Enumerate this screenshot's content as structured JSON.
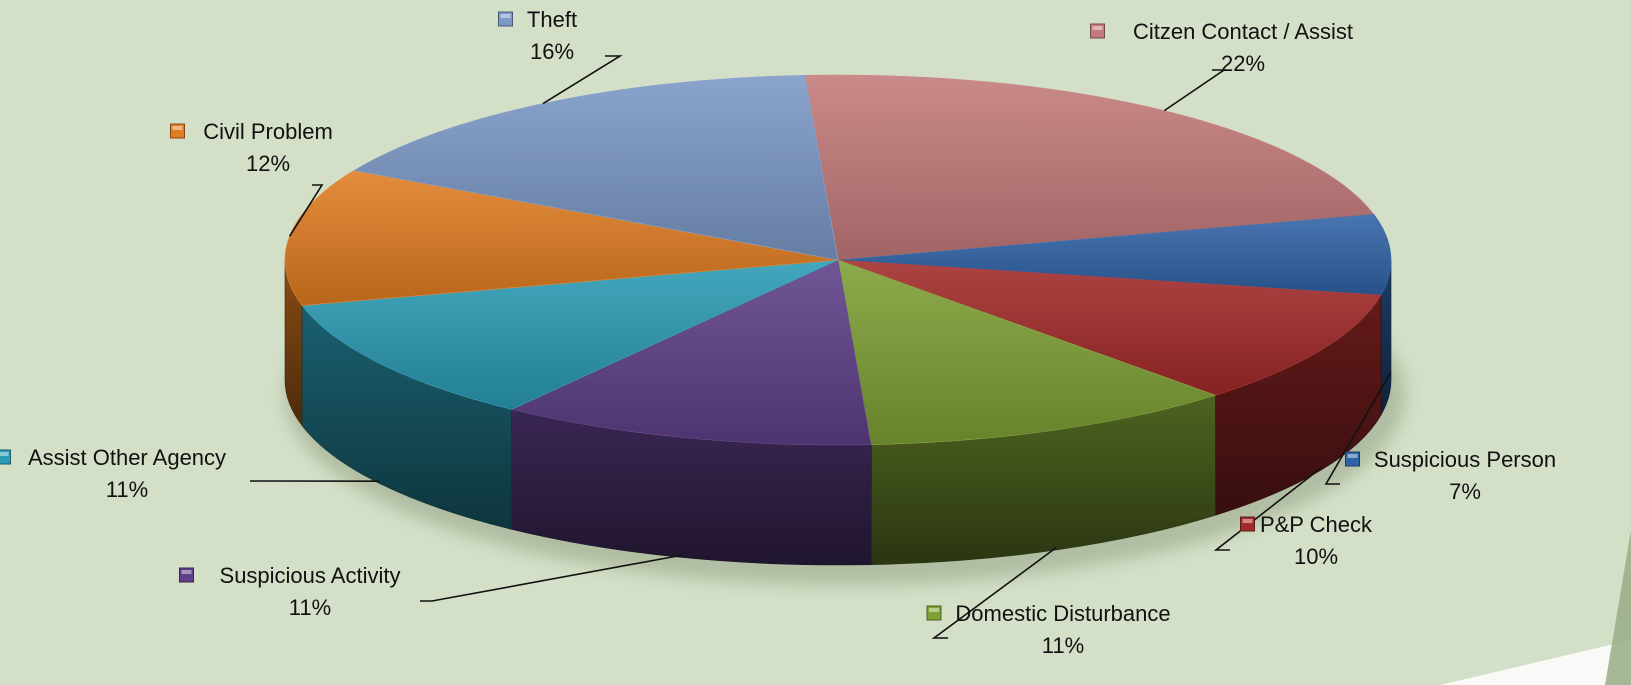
{
  "chart_data": {
    "type": "pie",
    "variant": "3d",
    "title": "",
    "legend": "none",
    "slices": [
      {
        "label": "Citzen Contact / Assist",
        "value": 22,
        "value_label": "22%",
        "color": "#c47a7a"
      },
      {
        "label": "Suspicious Person",
        "value": 7,
        "value_label": "7%",
        "color": "#2f63a6"
      },
      {
        "label": "P&P Check",
        "value": 10,
        "value_label": "10%",
        "color": "#a32a2a"
      },
      {
        "label": "Domestic Disturbance",
        "value": 11,
        "value_label": "11%",
        "color": "#7ea034"
      },
      {
        "label": "Suspicious Activity",
        "value": 11,
        "value_label": "11%",
        "color": "#5e3f88"
      },
      {
        "label": "Assist Other Agency",
        "value": 11,
        "value_label": "11%",
        "color": "#2a9bb4"
      },
      {
        "label": "Civil Problem",
        "value": 12,
        "value_label": "12%",
        "color": "#e07c21"
      },
      {
        "label": "Theft",
        "value": 16,
        "value_label": "16%",
        "color": "#7b98c6"
      }
    ]
  }
}
